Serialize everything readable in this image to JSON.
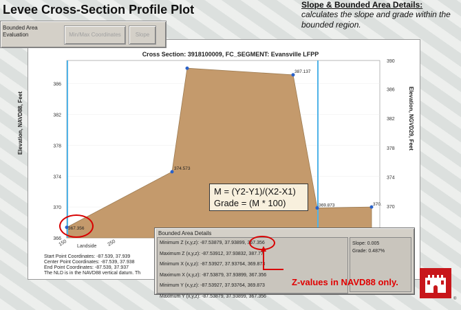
{
  "slide": {
    "title": "Levee Cross-Section Profile Plot",
    "note_heading": "Slope & Bounded Area Details:",
    "note_text": "calculates the slope and grade within the bounded region."
  },
  "toolbar": {
    "label": "Bounded Area Evaluation",
    "minmax_button": "Min/Max Coordinates",
    "slope_button": "Slope"
  },
  "chart": {
    "title": "Cross Section: 3918100009, FC_SEGMENT: Evansville LFPP",
    "ylabel_left": "Elevation, NAVD88, Feet",
    "ylabel_right": "Elevation, NGVD29, Feet",
    "landside_label": "Landside",
    "x_tick_0": "150",
    "x_tick_1": "250",
    "info_lines": [
      "Start Point Coordinates: -87.539, 37.939",
      "Center Point Coordinates: -87.539, 37.938",
      "End Point Coordinates: -87.539, 37.937",
      "The NLD is in the NAVD88 vertical datum. Th"
    ],
    "left_ticks": [
      "386",
      "382",
      "378",
      "374",
      "370",
      "366"
    ],
    "right_ticks": [
      "390",
      "386",
      "382",
      "378",
      "374",
      "370"
    ],
    "point_labels": [
      "367.356",
      "374.573",
      "387.137",
      "369.873",
      "370."
    ],
    "fill_color": "#c49a6c",
    "boundary_color": "#4fb3e8"
  },
  "chart_data": {
    "type": "area",
    "title": "Cross Section: 3918100009, FC_SEGMENT: Evansville LFPP",
    "ylabel": "Elevation, NAVD88, Feet",
    "ylim": [
      366,
      389
    ],
    "points_y": [
      367.356,
      374.573,
      388.0,
      387.137,
      369.873,
      370.0
    ],
    "labels": [
      "367.356",
      "374.573",
      "",
      "387.137",
      "369.873",
      "370."
    ]
  },
  "formula": {
    "line1": "M = (Y2-Y1)/(X2-X1)",
    "line2": "Grade = (M * 100)"
  },
  "dialog": {
    "title": "Bounded Area Details",
    "rows": [
      "Minimum Z (x,y,z): -87.53879, 37.93899, 367.356",
      "Maximum Z (x,y,z): -87.53912, 37.93832, 387.77",
      "Minimum X (x,y,z): -87.53927, 37.93764, 369.873",
      "Maximum X (x,y,z): -87.53879, 37.93899, 367.356",
      "Minimum Y (x,y,z): -87.53927, 37.93764, 369.873",
      "Maximum Y (x,y,z): -87.53879, 37.93899, 367.356"
    ],
    "slope": "Slope: 0.005",
    "grade": "Grade: 0.487%"
  },
  "callout": {
    "text": "Z-values in NAVD88 only."
  },
  "copyright": "®"
}
